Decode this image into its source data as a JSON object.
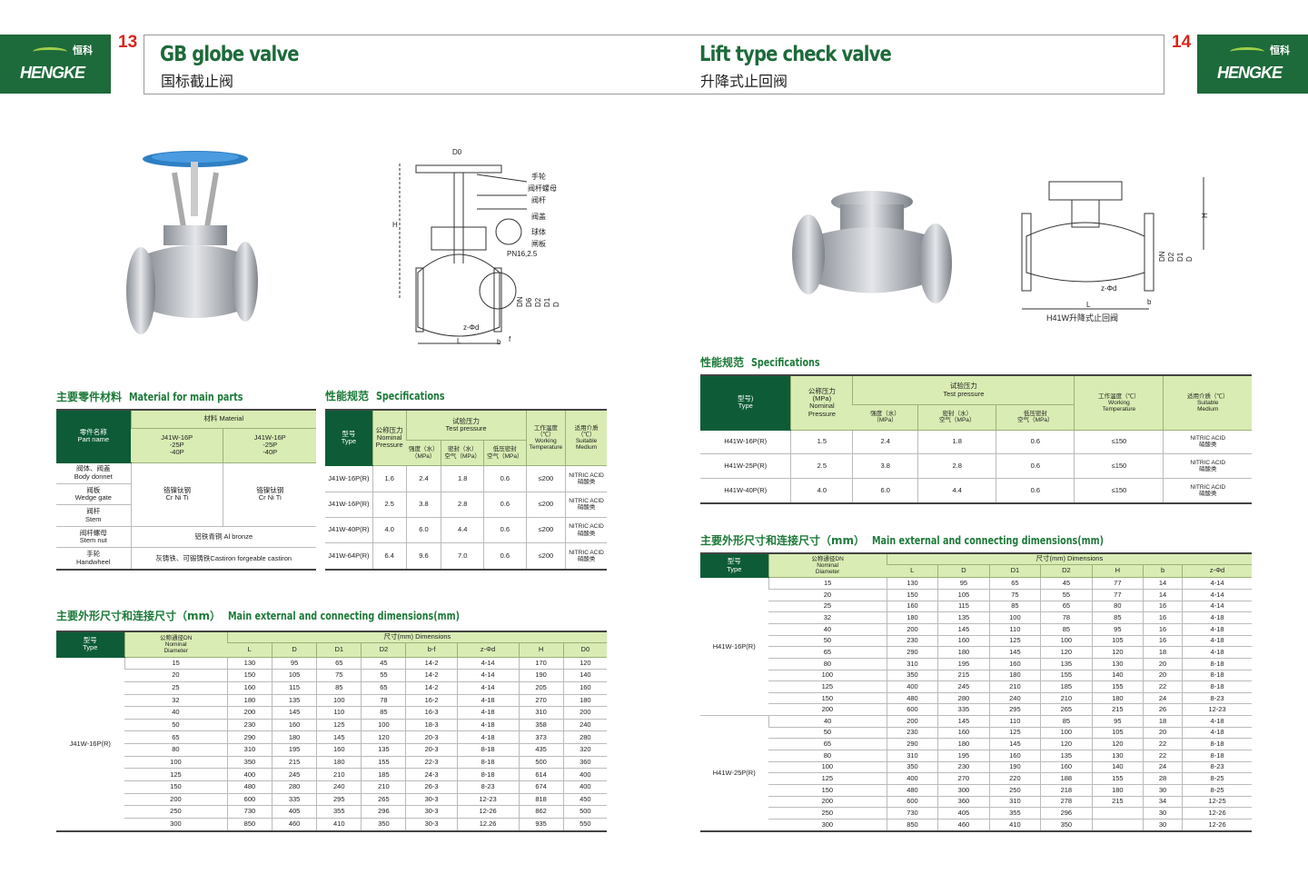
{
  "brand": {
    "name": "HENGKE",
    "cn": "恒科"
  },
  "left": {
    "page_number": "13",
    "title": "GB globe valve",
    "subtitle": "国标截止阀",
    "diagram_labels": {
      "d0": "D0",
      "h": "H",
      "parts": [
        "手轮",
        "阀杆螺母",
        "阀杆",
        "阀盖",
        "球体",
        "闸板"
      ],
      "pn": "PN16,2.5",
      "zd": "z-Φd",
      "l": "L",
      "b": "b",
      "f": "f",
      "dims": [
        "DN",
        "D6",
        "D2",
        "D1",
        "D"
      ]
    },
    "materials": {
      "heading_cn": "主要零件材料",
      "heading_en": "Material for main parts",
      "col_part_cn": "零件名称",
      "col_part_en": "Part name",
      "col_material": "材料 Material",
      "model_cols": [
        "J41W-16P\n-25P\n-40P",
        "J41W-16P\n-25P\n-40P"
      ],
      "parts": [
        [
          "阀体、阀盖",
          "Body donnet"
        ],
        [
          "阀板",
          "Wedge gate"
        ],
        [
          "阀杆",
          "Stem"
        ],
        [
          "阀杆螺母",
          "Stem nut"
        ],
        [
          "手轮",
          "Handwheel"
        ]
      ],
      "crniti": [
        "铬镍钛钢",
        "Cr Ni Ti"
      ],
      "stem_nut": "铝铁青铜 Al bronze",
      "handwheel": "灰铸铁、可锻铸铁Castiron forgeable castiron"
    },
    "specs": {
      "heading_cn": "性能规范",
      "heading_en": "Specifications",
      "h_type": "型号\nType",
      "h_nominal": "公称压力\nNominal\nPressure",
      "h_test": "试验压力\nTest pressure",
      "h_strength": "强度（水）\n（MPa）",
      "h_seal": "密封（水）\n空气（MPa）",
      "h_low": "低压密封\n空气（MPa）",
      "h_temp": "工作温度\n（℃）\nWorking\nTemperature",
      "h_medium": "适用介质\n（℃）\nSuitable\nMedium",
      "rows": [
        [
          "J41W-16P(R)",
          "1.6",
          "2.4",
          "1.8",
          "0.6",
          "≤200",
          "NITRIC ACID\n硝酸类"
        ],
        [
          "J41W-16P(R)",
          "2.5",
          "3.8",
          "2.8",
          "0.6",
          "≤200",
          "NITRIC ACID\n硝酸类"
        ],
        [
          "J41W-40P(R)",
          "4.0",
          "6.0",
          "4.4",
          "0.6",
          "≤200",
          "NITRIC ACID\n硝酸类"
        ],
        [
          "J41W-64P(R)",
          "6.4",
          "9.6",
          "7.0",
          "0.6",
          "≤200",
          "NITRIC ACID\n硝酸类"
        ]
      ]
    },
    "dimensions": {
      "heading_cn": "主要外形尺寸和连接尺寸（mm）",
      "heading_en": "Main external and connecting dimensions(mm)",
      "h_type": "型号\nType",
      "h_dn": "公称通径DN\nNominal\nDiameter",
      "h_dims": "尺寸(mm) Dimensions",
      "cols": [
        "L",
        "D",
        "D1",
        "D2",
        "b-f",
        "z-Φd",
        "H",
        "D0"
      ],
      "groups": [
        {
          "type": "J41W-16P(R)",
          "rows": [
            [
              "15",
              "130",
              "95",
              "65",
              "45",
              "14-2",
              "4-14",
              "170",
              "120"
            ],
            [
              "20",
              "150",
              "105",
              "75",
              "55",
              "14-2",
              "4-14",
              "190",
              "140"
            ],
            [
              "25",
              "160",
              "115",
              "85",
              "65",
              "14-2",
              "4-14",
              "205",
              "160"
            ],
            [
              "32",
              "180",
              "135",
              "100",
              "78",
              "16-2",
              "4-18",
              "270",
              "180"
            ],
            [
              "40",
              "200",
              "145",
              "110",
              "85",
              "16-3",
              "4-18",
              "310",
              "200"
            ],
            [
              "50",
              "230",
              "160",
              "125",
              "100",
              "18-3",
              "4-18",
              "358",
              "240"
            ],
            [
              "65",
              "290",
              "180",
              "145",
              "120",
              "20-3",
              "4-18",
              "373",
              "280"
            ],
            [
              "80",
              "310",
              "195",
              "160",
              "135",
              "20-3",
              "8-18",
              "435",
              "320"
            ],
            [
              "100",
              "350",
              "215",
              "180",
              "155",
              "22-3",
              "8-18",
              "500",
              "360"
            ],
            [
              "125",
              "400",
              "245",
              "210",
              "185",
              "24-3",
              "8-18",
              "614",
              "400"
            ],
            [
              "150",
              "480",
              "280",
              "240",
              "210",
              "26-3",
              "8-23",
              "674",
              "400"
            ],
            [
              "200",
              "600",
              "335",
              "295",
              "265",
              "30-3",
              "12-23",
              "818",
              "450"
            ],
            [
              "250",
              "730",
              "405",
              "355",
              "296",
              "30-3",
              "12-26",
              "862",
              "500"
            ],
            [
              "300",
              "850",
              "460",
              "410",
              "350",
              "30-3",
              "12.26",
              "935",
              "550"
            ]
          ]
        }
      ]
    }
  },
  "right": {
    "page_number": "14",
    "title": "Lift type check valve",
    "subtitle": "升降式止回阀",
    "diagram_labels": {
      "h": "H",
      "dims": [
        "DN",
        "D2",
        "D1",
        "D"
      ],
      "zd": "z-Φd",
      "l": "L",
      "b": "b",
      "caption": "H41W升降式止回阀"
    },
    "specs": {
      "heading_cn": "性能规范",
      "heading_en": "Specifications",
      "h_type": "型号)\nType",
      "h_nominal": "公称压力\n(MPa)\nNominal\nPressure",
      "h_test": "试验压力\nTest pressure",
      "h_strength": "强度（水）\n（MPa）",
      "h_seal": "密封（水）\n空气（MPa）",
      "h_low": "低压密封\n空气（MPa）",
      "h_temp": "工作温度（℃）\nWorking\nTemperature",
      "h_medium": "适用介质（℃）\nSuitable\nMedium",
      "rows": [
        [
          "H41W-16P(R)",
          "1.5",
          "2.4",
          "1.8",
          "0.6",
          "≤150",
          "NITRIC ACID\n硝酸类"
        ],
        [
          "H41W-25P(R)",
          "2.5",
          "3.8",
          "2.8",
          "0.6",
          "≤150",
          "NITRIC ACID\n硝酸类"
        ],
        [
          "H41W-40P(R)",
          "4.0",
          "6.0",
          "4.4",
          "0.6",
          "≤150",
          "NITRIC ACID\n硝酸类"
        ]
      ]
    },
    "dimensions": {
      "heading_cn": "主要外形尺寸和连接尺寸（mm）",
      "heading_en": "Main external and connecting dimensions(mm)",
      "h_type": "型号\nType",
      "h_dn": "公称通径DN\nNominal\nDiameter",
      "h_dims": "尺寸(mm) Dimensions",
      "cols": [
        "L",
        "D",
        "D1",
        "D2",
        "H",
        "b",
        "z-Φd"
      ],
      "groups": [
        {
          "type": "H41W-16P(R)",
          "rows": [
            [
              "15",
              "130",
              "95",
              "65",
              "45",
              "77",
              "14",
              "4-14"
            ],
            [
              "20",
              "150",
              "105",
              "75",
              "55",
              "77",
              "14",
              "4-14"
            ],
            [
              "25",
              "160",
              "115",
              "85",
              "65",
              "80",
              "16",
              "4-14"
            ],
            [
              "32",
              "180",
              "135",
              "100",
              "78",
              "85",
              "16",
              "4-18"
            ],
            [
              "40",
              "200",
              "145",
              "110",
              "85",
              "95",
              "16",
              "4-18"
            ],
            [
              "50",
              "230",
              "160",
              "125",
              "100",
              "105",
              "16",
              "4-18"
            ],
            [
              "65",
              "290",
              "180",
              "145",
              "120",
              "120",
              "18",
              "4-18"
            ],
            [
              "80",
              "310",
              "195",
              "160",
              "135",
              "130",
              "20",
              "8-18"
            ],
            [
              "100",
              "350",
              "215",
              "180",
              "155",
              "140",
              "20",
              "8-18"
            ],
            [
              "125",
              "400",
              "245",
              "210",
              "185",
              "155",
              "22",
              "8-18"
            ],
            [
              "150",
              "480",
              "280",
              "240",
              "210",
              "180",
              "24",
              "8-23"
            ],
            [
              "200",
              "600",
              "335",
              "295",
              "265",
              "215",
              "26",
              "12-23"
            ]
          ]
        },
        {
          "type": "H41W-25P(R)",
          "rows": [
            [
              "40",
              "200",
              "145",
              "110",
              "85",
              "95",
              "18",
              "4-18"
            ],
            [
              "50",
              "230",
              "160",
              "125",
              "100",
              "105",
              "20",
              "4-18"
            ],
            [
              "65",
              "290",
              "180",
              "145",
              "120",
              "120",
              "22",
              "8-18"
            ],
            [
              "80",
              "310",
              "195",
              "160",
              "135",
              "130",
              "22",
              "8-18"
            ],
            [
              "100",
              "350",
              "230",
              "190",
              "160",
              "140",
              "24",
              "8-23"
            ],
            [
              "125",
              "400",
              "270",
              "220",
              "188",
              "155",
              "28",
              "8-25"
            ],
            [
              "150",
              "480",
              "300",
              "250",
              "218",
              "180",
              "30",
              "8-25"
            ],
            [
              "200",
              "600",
              "360",
              "310",
              "278",
              "215",
              "34",
              "12-25"
            ],
            [
              "250",
              "730",
              "405",
              "355",
              "296",
              "",
              "30",
              "12-26"
            ],
            [
              "300",
              "850",
              "460",
              "410",
              "350",
              "",
              "30",
              "12-26"
            ]
          ]
        }
      ]
    }
  },
  "colors": {
    "brand_green": "#1d6a3a",
    "header_dark": "#0d5c37",
    "header_light": "#d9ecb3",
    "page_number": "#d9261c"
  }
}
